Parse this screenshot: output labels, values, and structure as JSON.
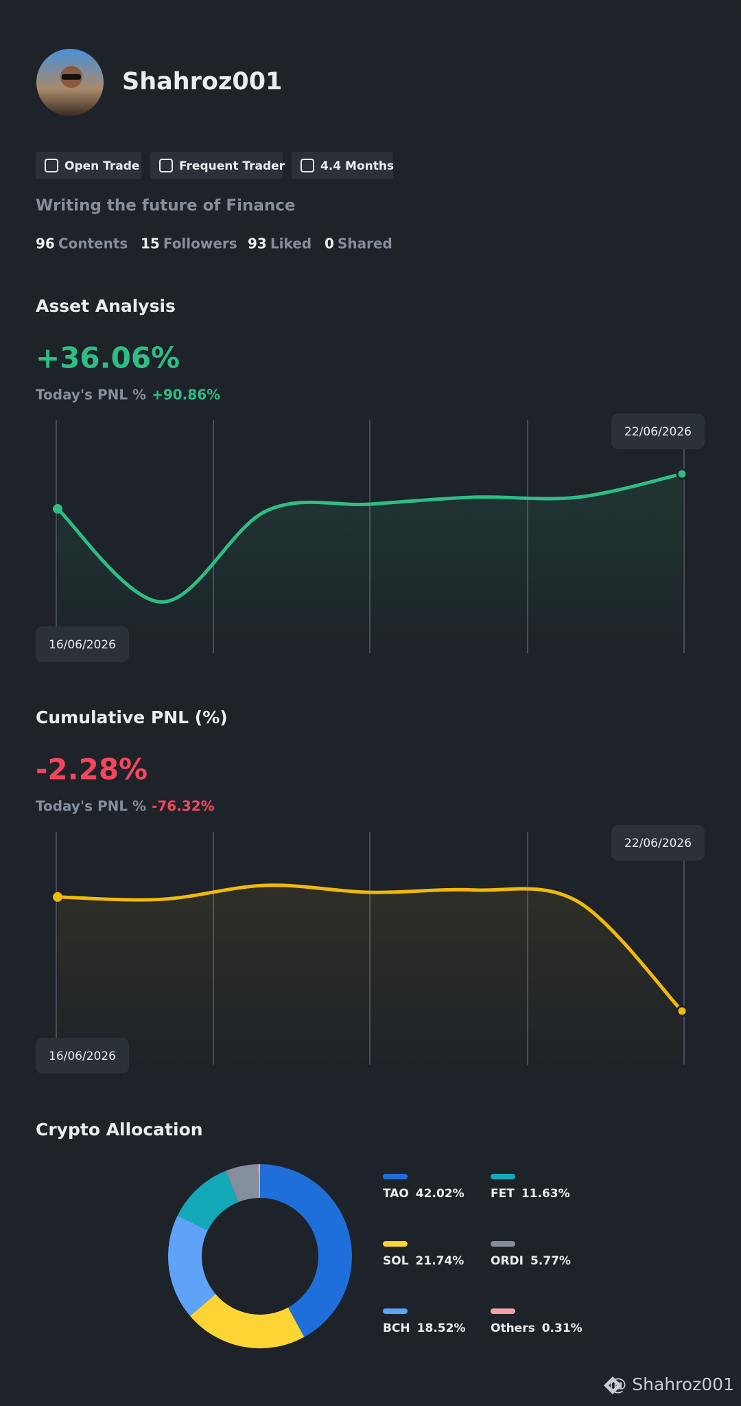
{
  "profile": {
    "name": "Shahroz001",
    "badges": [
      "Open Trade",
      "Frequent Trader",
      "4.4 Months"
    ],
    "bio": "Writing the future of Finance",
    "stats": [
      {
        "value": 96,
        "label": "Contents"
      },
      {
        "value": 15,
        "label": "Followers"
      },
      {
        "value": 93,
        "label": "Liked"
      },
      {
        "value": 0,
        "label": "Shared"
      }
    ]
  },
  "chart_data": [
    {
      "type": "line",
      "title": "Asset Analysis",
      "headline": "+36.06%",
      "headline_color": "#2ebd85",
      "pnl_label": "Today's PNL %",
      "pnl_value": "+90.86%",
      "categories": [
        "16/06/2026",
        null,
        null,
        null,
        null,
        null,
        "22/06/2026"
      ],
      "series": [
        {
          "color": "#2ebd85",
          "values": [
            62,
            22,
            61,
            64,
            67,
            67,
            77
          ]
        }
      ],
      "ylim": [
        0,
        100
      ]
    },
    {
      "type": "line",
      "title": "Cumulative PNL (%)",
      "headline": "-2.28%",
      "headline_color": "#f6465d",
      "pnl_label": "Today's PNL %",
      "pnl_value": "-76.32%",
      "categories": [
        "16/06/2026",
        null,
        null,
        null,
        null,
        null,
        "22/06/2026"
      ],
      "series": [
        {
          "color": "#f0b90b",
          "values": [
            72,
            71,
            77,
            74,
            75,
            70,
            23
          ]
        }
      ],
      "ylim": [
        0,
        100
      ]
    },
    {
      "type": "pie",
      "donut": true,
      "title": "Crypto Allocation",
      "categories": [
        "TAO",
        "SOL",
        "BCH",
        "FET",
        "ORDI",
        "Others"
      ],
      "values": [
        42.02,
        21.74,
        18.52,
        11.63,
        5.77,
        0.31
      ],
      "value_labels": [
        "42.02%",
        "21.74%",
        "18.52%",
        "11.63%",
        "5.77%",
        "0.31%"
      ],
      "colors": [
        "#1e6fd9",
        "#fcd535",
        "#5ea3f7",
        "#14a9b8",
        "#848e9c",
        "#f4a0a6"
      ]
    }
  ],
  "watermark": "@ Shahroz001"
}
